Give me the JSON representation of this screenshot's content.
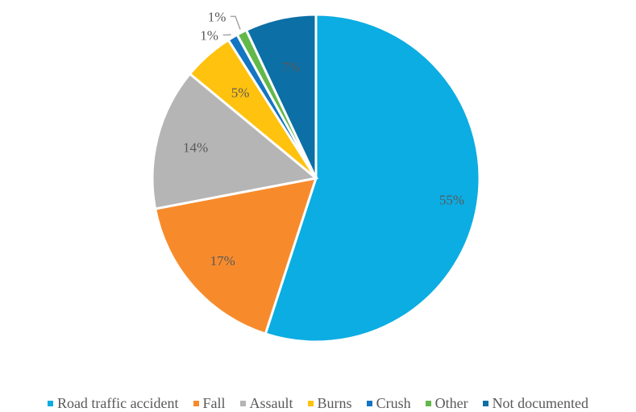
{
  "chart_data": {
    "type": "pie",
    "categories": [
      "Road traffic accident",
      "Fall",
      "Assault",
      "Burns",
      "Crush",
      "Other",
      "Not documented"
    ],
    "values": [
      55,
      17,
      14,
      5,
      1,
      1,
      7
    ],
    "labels": [
      "55%",
      "17%",
      "14%",
      "5%",
      "1%",
      "1%",
      "7%"
    ],
    "colors": [
      "#0BADE2",
      "#F78B2C",
      "#B5B5B5",
      "#FFC20F",
      "#1475C2",
      "#63B84A",
      "#0C6FA5"
    ],
    "legend_placement": "bottom",
    "start_angle": "12 o'clock",
    "direction": "clockwise"
  }
}
